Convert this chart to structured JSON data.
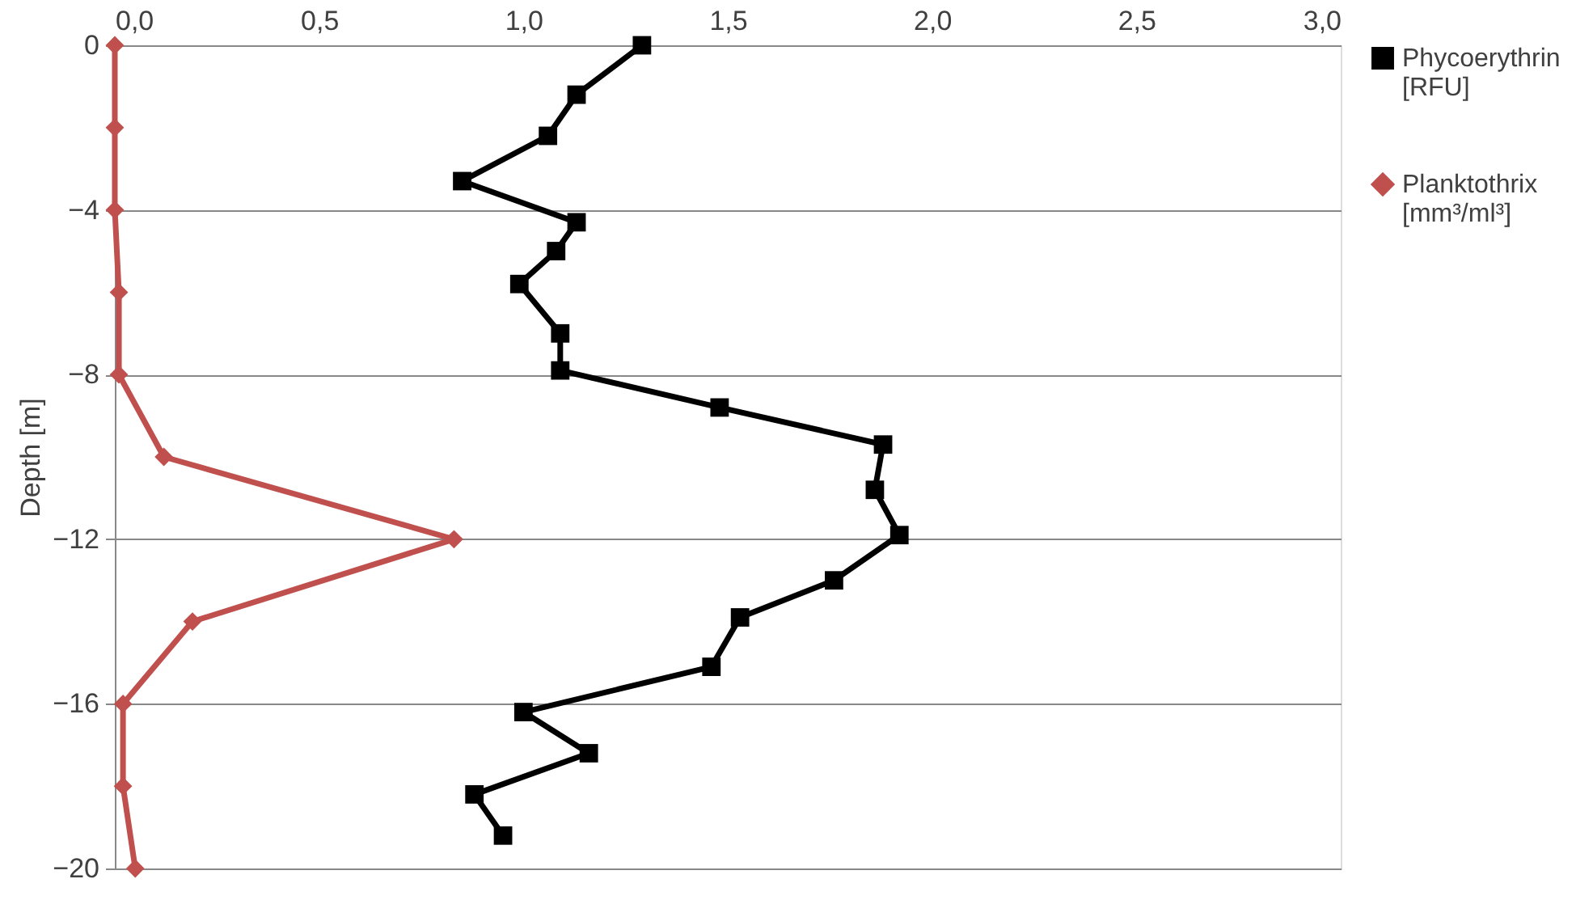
{
  "chart_data": {
    "type": "line",
    "ylabel": "Depth [m]",
    "xlim": [
      0,
      3
    ],
    "xticks": [
      {
        "value": 0,
        "label": "0,0"
      },
      {
        "value": 0.5,
        "label": "0,5"
      },
      {
        "value": 1,
        "label": "1,0"
      },
      {
        "value": 1.5,
        "label": "1,5"
      },
      {
        "value": 2,
        "label": "2,0"
      },
      {
        "value": 2.5,
        "label": "2,5"
      },
      {
        "value": 3,
        "label": "3,0"
      }
    ],
    "ylim": [
      -20,
      0
    ],
    "yticks": [
      -20,
      -16,
      -12,
      -8,
      -4,
      0
    ],
    "grid": "y",
    "legend": "right",
    "series": [
      {
        "name": "Phycoerythrin [RFU]",
        "color": "#000000",
        "marker": "square",
        "x": [
          1.29,
          1.13,
          1.06,
          0.85,
          1.13,
          1.08,
          0.99,
          1.09,
          1.09,
          1.48,
          1.88,
          1.86,
          1.92,
          1.76,
          1.53,
          1.46,
          1.0,
          1.16,
          0.88,
          0.95
        ],
        "values": [
          0,
          -1.2,
          -2.2,
          -3.3,
          -4.3,
          -5.0,
          -5.8,
          -7.0,
          -7.9,
          -8.8,
          -9.7,
          -10.8,
          -11.9,
          -13.0,
          -13.9,
          -15.1,
          -16.2,
          -17.2,
          -18.2,
          -19.2
        ]
      },
      {
        "name": "Planktothrix [mm³/ml³]",
        "color": "#c0504d",
        "marker": "diamond",
        "x": [
          0.0,
          0.0,
          0.0,
          0.01,
          0.01,
          0.12,
          0.83,
          0.19,
          0.02,
          0.02,
          0.05
        ],
        "values": [
          0,
          -2,
          -4,
          -6,
          -8,
          -10,
          -12,
          -14,
          -16,
          -18,
          -20
        ]
      }
    ]
  }
}
